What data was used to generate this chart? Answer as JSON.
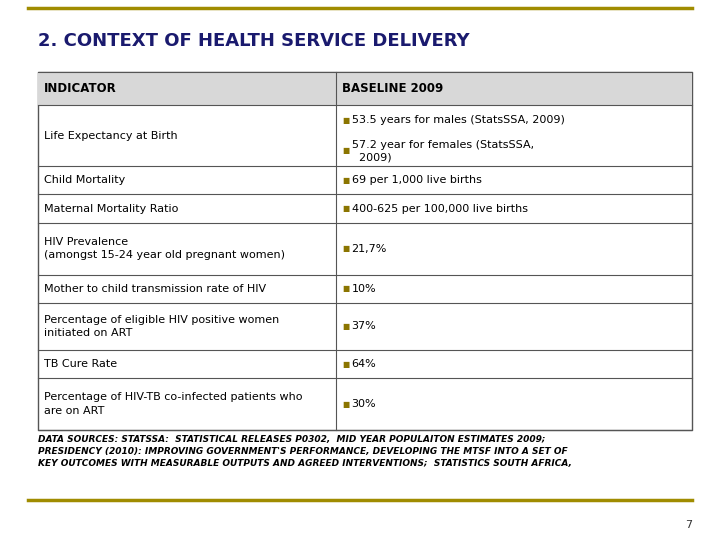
{
  "title": "2. CONTEXT OF HEALTH SERVICE DELIVERY",
  "title_color": "#1a1a6e",
  "title_fontsize": 13,
  "bg_color": "#ffffff",
  "border_color": "#a08c00",
  "header_col1": "INDICATOR",
  "header_col2": "BASELINE 2009",
  "header_bg": "#d8d8d8",
  "header_fontsize": 8.5,
  "row_fontsize": 8,
  "bullet_color": "#8b7500",
  "rows": [
    {
      "indicator": "Life Expectancy at Birth",
      "baseline": [
        "53.5 years for males (StatsSSA, 2009)",
        "57.2 year for females (StatsSSA,\n  2009)"
      ],
      "multi": true
    },
    {
      "indicator": "Child Mortality",
      "baseline": [
        "69 per 1,000 live births"
      ],
      "multi": false
    },
    {
      "indicator": "Maternal Mortality Ratio",
      "baseline": [
        "400-625 per 100,000 live births"
      ],
      "multi": false
    },
    {
      "indicator": "HIV Prevalence\n(amongst 15-24 year old pregnant women)",
      "baseline": [
        "21,7%"
      ],
      "multi": false
    },
    {
      "indicator": "Mother to child transmission rate of HIV",
      "baseline": [
        "10%"
      ],
      "multi": false
    },
    {
      "indicator": "Percentage of eligible HIV positive women\ninitiated on ART",
      "baseline": [
        "37%"
      ],
      "multi": false
    },
    {
      "indicator": "TB Cure Rate",
      "baseline": [
        "64%"
      ],
      "multi": false
    },
    {
      "indicator": "Percentage of HIV-TB co-infected patients who\nare on ART",
      "baseline": [
        "30%"
      ],
      "multi": false
    }
  ],
  "footnote": "DATA SOURCES: STATSSA:  STATISTICAL RELEASES P0302,  MID YEAR POPULAITON ESTIMATES 2009;\nPRESIDENCY (2010): IMPROVING GOVERNMENT'S PERFORMANCE, DEVELOPING THE MTSF INTO A SET OF\nKEY OUTCOMES WITH MEASURABLE OUTPUTS AND AGREED INTERVENTIONS;  STATISTICS SOUTH AFRICA,",
  "page_number": "7",
  "fig_width": 7.2,
  "fig_height": 5.4,
  "dpi": 100
}
